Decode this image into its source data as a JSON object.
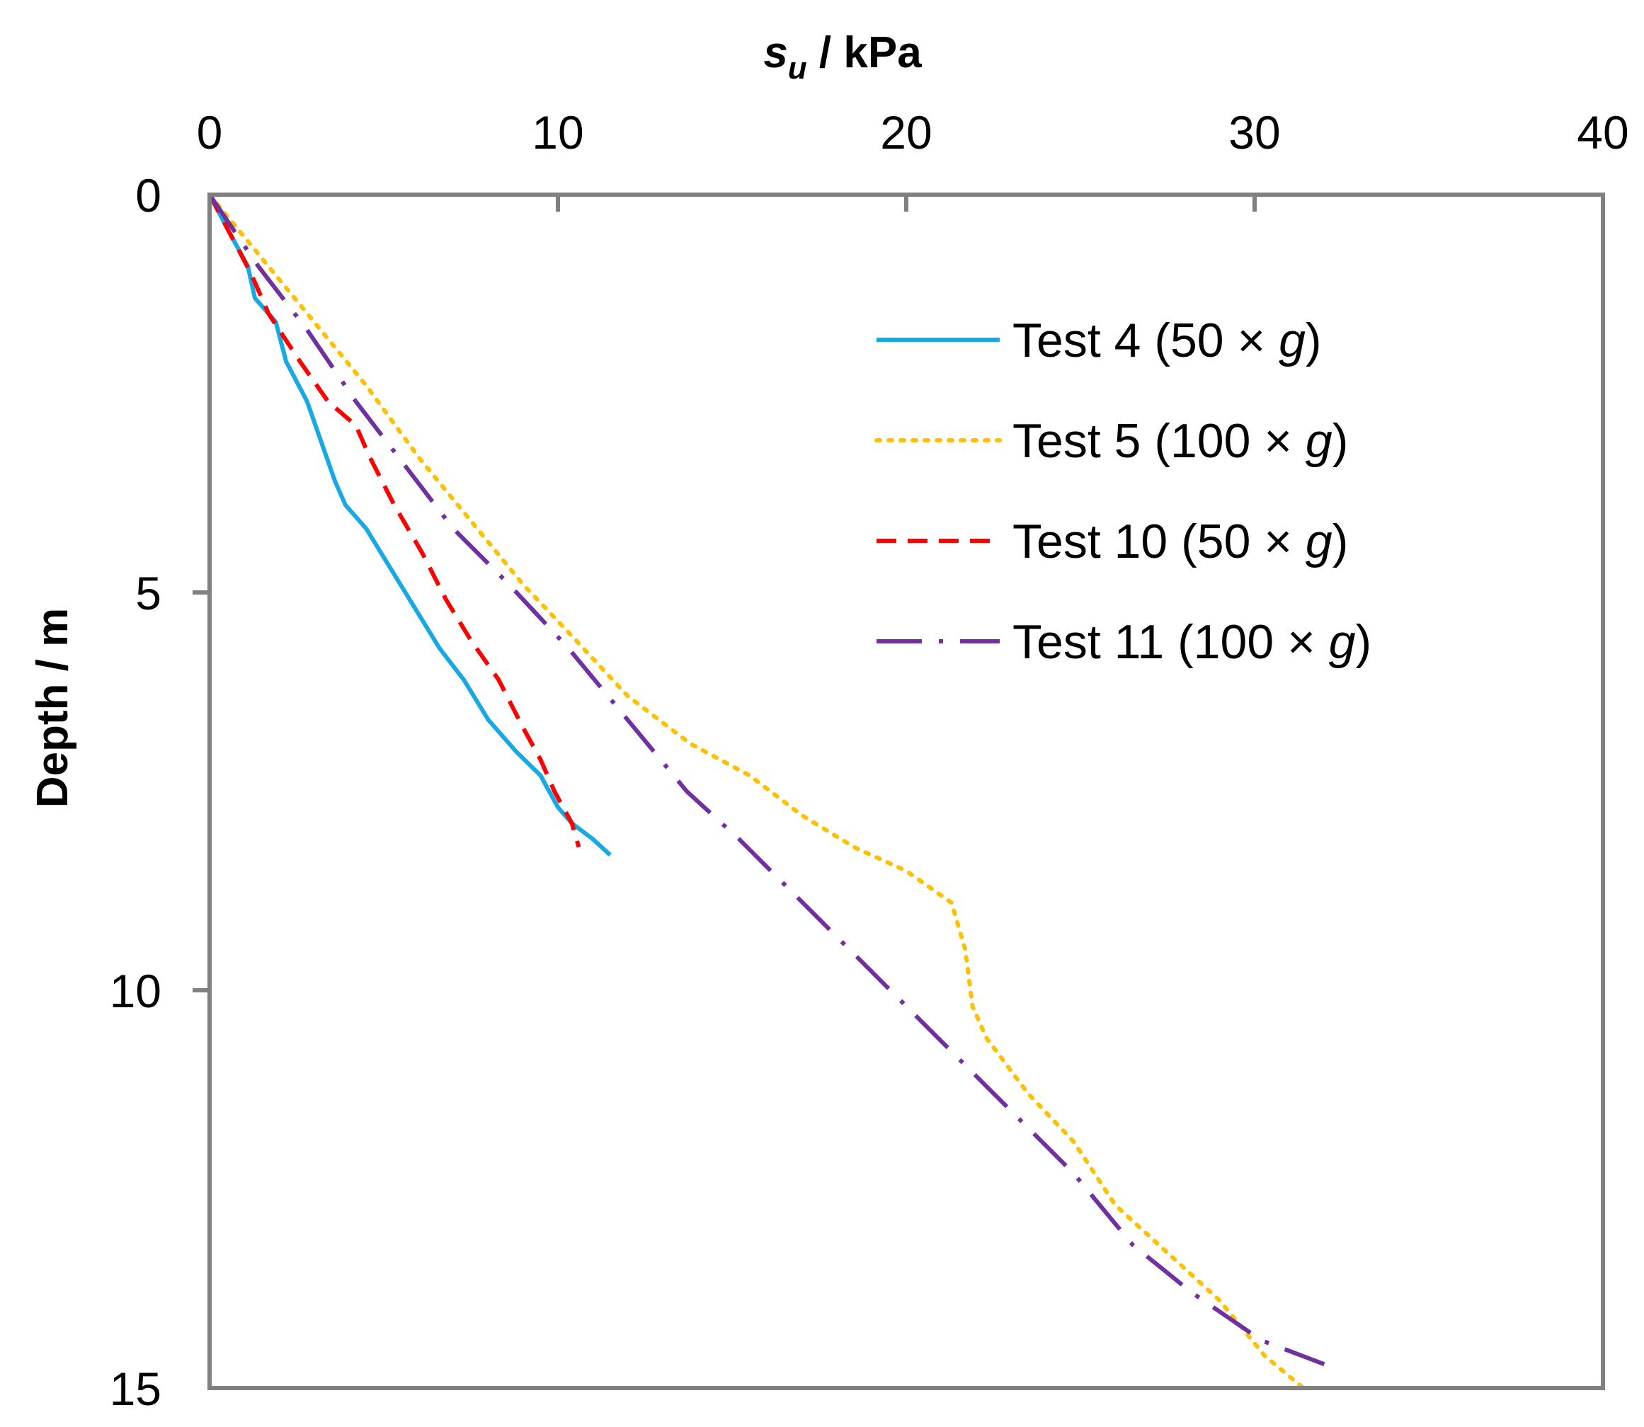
{
  "chart_data": {
    "type": "line",
    "xlabel": {
      "main": "s",
      "subscript": "u",
      "rest": " / kPa"
    },
    "ylabel": "Depth / m",
    "xlim": [
      0,
      40
    ],
    "ylim": [
      0,
      15
    ],
    "y_inverted": true,
    "x_axis_position": "top",
    "xticks": [
      0,
      10,
      20,
      30,
      40
    ],
    "yticks": [
      0,
      5,
      10,
      15
    ],
    "xtick_labels": [
      "0",
      "10",
      "20",
      "30",
      "40"
    ],
    "ytick_labels": [
      "0",
      "5",
      "10",
      "15"
    ],
    "grid": false,
    "legend_position": "top-right",
    "series": [
      {
        "name": "Test 4 (50 × g)",
        "label_prefix": "Test 4 (50 × ",
        "label_italic": "g",
        "label_suffix": ")",
        "color": "#17a9e3",
        "style": "solid",
        "x": [
          0,
          0.6,
          1.1,
          1.3,
          1.9,
          2.2,
          2.8,
          3.2,
          3.6,
          3.9,
          4.5,
          5.2,
          5.9,
          6.6,
          7.3,
          8.0,
          8.8,
          9.5,
          10.0,
          10.4,
          11.0,
          11.5
        ],
        "y": [
          0,
          0.5,
          0.9,
          1.3,
          1.6,
          2.1,
          2.6,
          3.1,
          3.6,
          3.9,
          4.2,
          4.7,
          5.2,
          5.7,
          6.1,
          6.6,
          7.0,
          7.3,
          7.7,
          7.9,
          8.1,
          8.3
        ]
      },
      {
        "name": "Test 5 (100 × g)",
        "label_prefix": "Test 5 (100 × ",
        "label_italic": "g",
        "label_suffix": ")",
        "color": "#ffc000",
        "style": "dotted",
        "x": [
          0,
          1.5,
          3.0,
          4.5,
          6.0,
          7.5,
          9.0,
          10.3,
          12.0,
          13.8,
          15.5,
          17.0,
          18.5,
          20.0,
          21.3,
          21.7,
          21.9,
          22.3,
          23.5,
          24.8,
          26.0,
          27.5,
          29.0,
          30.3,
          31.4
        ],
        "y": [
          0,
          0.8,
          1.6,
          2.4,
          3.3,
          4.1,
          4.9,
          5.5,
          6.3,
          6.9,
          7.3,
          7.8,
          8.2,
          8.5,
          8.9,
          9.5,
          10.2,
          10.6,
          11.3,
          11.9,
          12.7,
          13.3,
          13.9,
          14.6,
          15.0
        ]
      },
      {
        "name": "Test 10 (50 × g)",
        "label_prefix": "Test 10 (50 × ",
        "label_italic": "g",
        "label_suffix": ")",
        "color": "#ff0000",
        "style": "dashed",
        "x": [
          0,
          0.6,
          1.2,
          1.7,
          2.6,
          3.4,
          4.2,
          4.6,
          5.3,
          6.1,
          6.8,
          7.5,
          8.3,
          9.0,
          9.5,
          9.9,
          10.4,
          10.6
        ],
        "y": [
          0,
          0.5,
          1.0,
          1.5,
          2.1,
          2.6,
          2.9,
          3.3,
          3.9,
          4.5,
          5.1,
          5.6,
          6.1,
          6.7,
          7.1,
          7.5,
          7.9,
          8.2
        ]
      },
      {
        "name": "Test 11 (100 × g)",
        "label_prefix": "Test 11 (100 × ",
        "label_italic": "g",
        "label_suffix": ")",
        "color": "#7030a0",
        "style": "dash-dot",
        "x": [
          0,
          1.4,
          2.8,
          4.2,
          5.6,
          7.0,
          8.6,
          10.3,
          12.0,
          13.7,
          15.2,
          16.8,
          18.4,
          20.0,
          21.6,
          23.2,
          24.8,
          26.5,
          28.2,
          30.2,
          32.0
        ],
        "y": [
          0,
          0.9,
          1.7,
          2.6,
          3.4,
          4.2,
          4.9,
          5.7,
          6.6,
          7.5,
          8.1,
          8.8,
          9.5,
          10.2,
          10.9,
          11.6,
          12.3,
          13.2,
          13.8,
          14.4,
          14.7
        ]
      }
    ]
  }
}
